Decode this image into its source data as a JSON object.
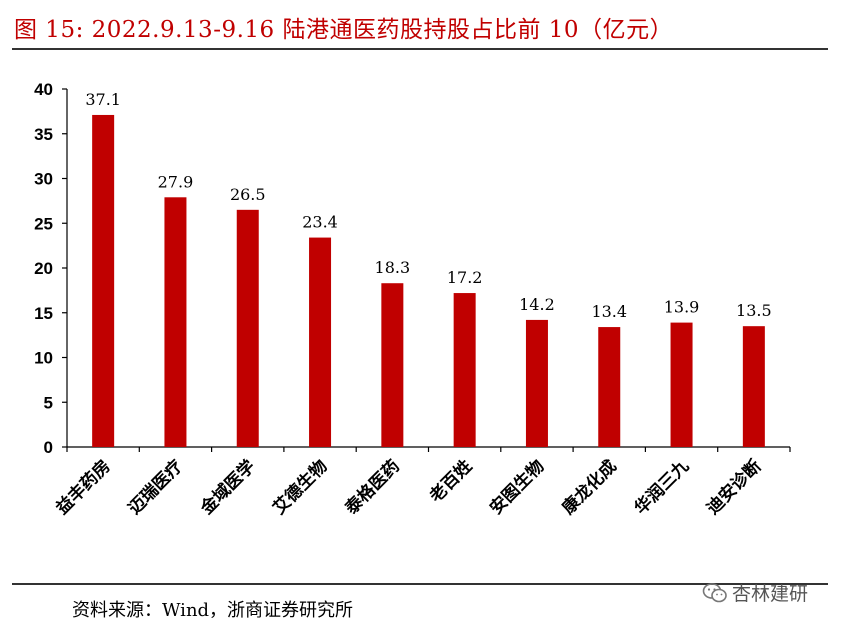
{
  "figure": {
    "title": "图 15:    2022.9.13-9.16 陆港通医药股持股占比前 10（亿元）",
    "source": "资料来源：Wind，浙商证券研究所",
    "watermark": "杏林建研"
  },
  "colors": {
    "bar": "#c00000",
    "title": "#c00000",
    "axis": "#000000"
  },
  "chart_data": {
    "type": "bar",
    "title": "2022.9.13-9.16 陆港通医药股持股占比前 10（亿元）",
    "xlabel": "",
    "ylabel": "",
    "ylim": [
      0,
      40
    ],
    "yticks": [
      0,
      5,
      10,
      15,
      20,
      25,
      30,
      35,
      40
    ],
    "grid": false,
    "categories": [
      "益丰药房",
      "迈瑞医疗",
      "金域医学",
      "艾德生物",
      "泰格医药",
      "老百姓",
      "安图生物",
      "康龙化成",
      "华润三九",
      "迪安诊断"
    ],
    "values": [
      37.1,
      27.9,
      26.5,
      23.4,
      18.3,
      17.2,
      14.2,
      13.4,
      13.9,
      13.5
    ],
    "data_labels": [
      "37.1",
      "27.9",
      "26.5",
      "23.4",
      "18.3",
      "17.2",
      "14.2",
      "13.4",
      "13.9",
      "13.5"
    ]
  }
}
